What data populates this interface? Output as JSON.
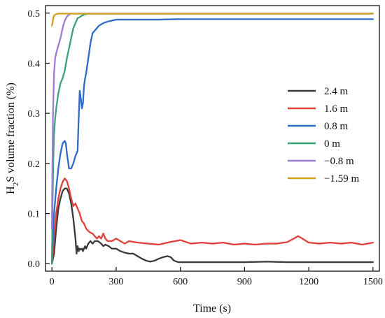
{
  "chart_data": {
    "type": "line",
    "title": "",
    "xlabel": "Time (s)",
    "ylabel": "H2S volume fraction (%)",
    "ylabel_parts": {
      "pre": "H",
      "sub": "2",
      "post": "S volume fraction (%)"
    },
    "xlim": [
      -30,
      1530
    ],
    "ylim": [
      -0.015,
      0.515
    ],
    "xticks": [
      0,
      300,
      600,
      900,
      1200,
      1500
    ],
    "yticks": [
      0.0,
      0.1,
      0.2,
      0.3,
      0.4,
      0.5
    ],
    "ytick_labels": [
      "0.0",
      "0.1",
      "0.2",
      "0.3",
      "0.4",
      "0.5"
    ],
    "legend_position": "center-right",
    "series": [
      {
        "name": "2.4 m",
        "color": "#3a3a3a",
        "x": [
          0,
          10,
          20,
          30,
          40,
          50,
          60,
          70,
          80,
          90,
          100,
          110,
          115,
          120,
          125,
          130,
          135,
          140,
          145,
          150,
          155,
          160,
          170,
          180,
          190,
          200,
          215,
          230,
          240,
          250,
          265,
          280,
          300,
          320,
          340,
          360,
          380,
          400,
          420,
          440,
          460,
          480,
          500,
          520,
          540,
          555,
          570,
          590,
          620,
          700,
          800,
          900,
          1000,
          1100,
          1200,
          1300,
          1400,
          1500
        ],
        "y": [
          0.0,
          0.02,
          0.07,
          0.11,
          0.13,
          0.145,
          0.15,
          0.15,
          0.14,
          0.12,
          0.09,
          0.05,
          0.02,
          0.035,
          0.025,
          0.03,
          0.028,
          0.03,
          0.025,
          0.03,
          0.035,
          0.03,
          0.04,
          0.045,
          0.04,
          0.045,
          0.045,
          0.04,
          0.035,
          0.038,
          0.035,
          0.03,
          0.03,
          0.025,
          0.022,
          0.02,
          0.02,
          0.015,
          0.01,
          0.006,
          0.004,
          0.006,
          0.01,
          0.013,
          0.015,
          0.013,
          0.006,
          0.003,
          0.003,
          0.003,
          0.003,
          0.003,
          0.004,
          0.003,
          0.003,
          0.003,
          0.003,
          0.003
        ]
      },
      {
        "name": "1.6 m",
        "color": "#e0403c",
        "x": [
          0,
          10,
          20,
          30,
          40,
          50,
          60,
          70,
          80,
          90,
          100,
          110,
          120,
          130,
          140,
          150,
          160,
          170,
          180,
          190,
          200,
          210,
          220,
          230,
          240,
          250,
          260,
          280,
          300,
          320,
          340,
          360,
          400,
          450,
          500,
          550,
          600,
          650,
          700,
          750,
          800,
          850,
          900,
          950,
          1000,
          1050,
          1100,
          1130,
          1150,
          1170,
          1200,
          1250,
          1300,
          1350,
          1400,
          1450,
          1500
        ],
        "y": [
          0.0,
          0.05,
          0.1,
          0.13,
          0.15,
          0.163,
          0.17,
          0.165,
          0.15,
          0.13,
          0.115,
          0.12,
          0.11,
          0.1,
          0.085,
          0.08,
          0.07,
          0.065,
          0.062,
          0.06,
          0.055,
          0.05,
          0.055,
          0.05,
          0.06,
          0.05,
          0.045,
          0.045,
          0.05,
          0.045,
          0.04,
          0.045,
          0.042,
          0.04,
          0.038,
          0.043,
          0.047,
          0.04,
          0.042,
          0.04,
          0.042,
          0.038,
          0.04,
          0.038,
          0.04,
          0.04,
          0.043,
          0.05,
          0.055,
          0.05,
          0.042,
          0.04,
          0.042,
          0.04,
          0.042,
          0.038,
          0.042
        ]
      },
      {
        "name": "0.8 m",
        "color": "#2f6bc8",
        "x": [
          0,
          5,
          10,
          20,
          30,
          40,
          50,
          60,
          65,
          70,
          80,
          90,
          100,
          110,
          120,
          125,
          130,
          135,
          140,
          145,
          150,
          155,
          160,
          170,
          180,
          190,
          200,
          210,
          220,
          240,
          260,
          280,
          300,
          350,
          400,
          500,
          600,
          800,
          1000,
          1200,
          1400,
          1500
        ],
        "y": [
          0.0,
          0.05,
          0.1,
          0.15,
          0.19,
          0.22,
          0.24,
          0.245,
          0.24,
          0.22,
          0.19,
          0.19,
          0.2,
          0.215,
          0.225,
          0.29,
          0.345,
          0.33,
          0.31,
          0.32,
          0.355,
          0.37,
          0.38,
          0.41,
          0.44,
          0.46,
          0.465,
          0.47,
          0.475,
          0.48,
          0.483,
          0.485,
          0.487,
          0.487,
          0.487,
          0.487,
          0.488,
          0.488,
          0.488,
          0.488,
          0.488,
          0.488
        ]
      },
      {
        "name": "0 m",
        "color": "#3ba374",
        "x": [
          0,
          3,
          6,
          10,
          15,
          20,
          30,
          40,
          50,
          60,
          70,
          80,
          90,
          100,
          110,
          120,
          130,
          140,
          150,
          160,
          175,
          190,
          200,
          220,
          300,
          600,
          900,
          1200,
          1500
        ],
        "y": [
          0.0,
          0.12,
          0.2,
          0.26,
          0.29,
          0.31,
          0.34,
          0.36,
          0.37,
          0.385,
          0.41,
          0.43,
          0.45,
          0.47,
          0.48,
          0.49,
          0.492,
          0.495,
          0.497,
          0.498,
          0.499,
          0.499,
          0.499,
          0.499,
          0.499,
          0.499,
          0.499,
          0.499,
          0.499
        ]
      },
      {
        "name": "−0.8 m",
        "color": "#a07ad8",
        "x": [
          0,
          2,
          5,
          10,
          15,
          20,
          30,
          40,
          50,
          60,
          70,
          80,
          90,
          100,
          120,
          150,
          200,
          300,
          600,
          900,
          1200,
          1500
        ],
        "y": [
          0.07,
          0.18,
          0.3,
          0.38,
          0.41,
          0.42,
          0.435,
          0.45,
          0.47,
          0.485,
          0.493,
          0.497,
          0.499,
          0.499,
          0.499,
          0.499,
          0.499,
          0.499,
          0.499,
          0.499,
          0.499,
          0.499
        ]
      },
      {
        "name": "−1.59 m",
        "color": "#d4a020",
        "x": [
          0,
          3,
          6,
          10,
          15,
          20,
          30,
          40,
          60,
          100,
          200,
          500,
          800,
          1100,
          1500
        ],
        "y": [
          0.475,
          0.48,
          0.49,
          0.495,
          0.497,
          0.498,
          0.499,
          0.499,
          0.499,
          0.499,
          0.499,
          0.499,
          0.499,
          0.499,
          0.499
        ]
      }
    ]
  }
}
